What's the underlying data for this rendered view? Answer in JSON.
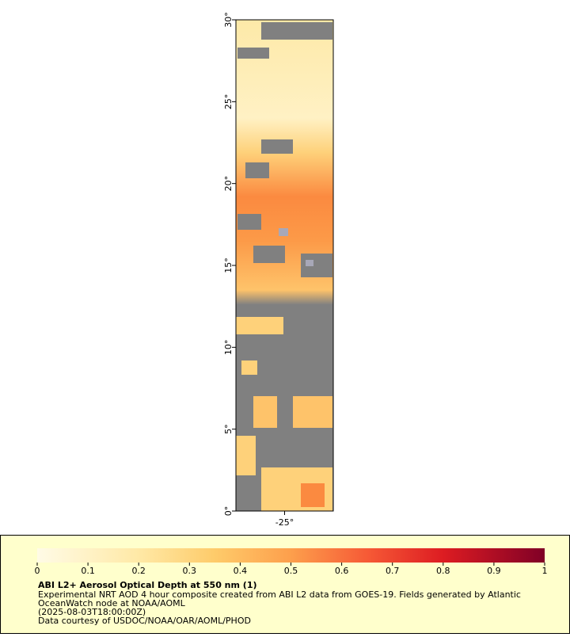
{
  "map": {
    "ylim": [
      0,
      30
    ],
    "yticks": [
      {
        "value": 0,
        "label": "0°"
      },
      {
        "value": 5,
        "label": "5°"
      },
      {
        "value": 10,
        "label": "10°"
      },
      {
        "value": 15,
        "label": "15°"
      },
      {
        "value": 20,
        "label": "20°"
      },
      {
        "value": 25,
        "label": "25°"
      },
      {
        "value": 30,
        "label": "30°"
      }
    ],
    "xlim": [
      -28,
      -22
    ],
    "xticks": [
      {
        "value": -25,
        "label": "-25°"
      }
    ]
  },
  "colorbar": {
    "lim": [
      0,
      1
    ],
    "ticks": [
      0,
      0.1,
      0.2,
      0.3,
      0.4,
      0.5,
      0.6,
      0.7,
      0.8,
      0.9,
      1
    ]
  },
  "caption": {
    "title": "ABI L2+ Aerosol Optical Depth at 550 nm (1)",
    "lines": [
      "Experimental NRT AOD 4 hour composite created from ABI L2 data from GOES-19. Fields generated by Atlantic",
      "OceanWatch node at NOAA/AOML",
      "(2025-08-03T18:00:00Z)",
      "Data courtesy of USDOC/NOAA/OAR/AOML/PHOD"
    ]
  }
}
